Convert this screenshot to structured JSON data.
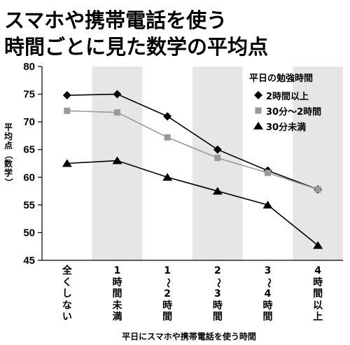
{
  "title_line1": "スマホや携帯電話を使う",
  "title_line2": "時間ごとに見た数学の平均点",
  "chart_data": {
    "type": "line",
    "ylabel": "平均点（数学）",
    "xlabel": "平日にスマホや携帯電話を使う時間",
    "categories": [
      "全くしない",
      "1時間未満",
      "1〜2時間",
      "2〜3時間",
      "3〜4時間",
      "4時間以上"
    ],
    "ylim": [
      45,
      80
    ],
    "yticks": [
      45,
      50,
      55,
      60,
      65,
      70,
      75,
      80
    ],
    "legend_title": "平日の勉強時間",
    "legend_position": "top-right",
    "grid": false,
    "alternating_shaded_columns": true,
    "series": [
      {
        "name": "2時間以上",
        "marker": "diamond",
        "color": "#000000",
        "values": [
          74.8,
          75.0,
          71.0,
          65.0,
          61.2,
          57.8
        ]
      },
      {
        "name": "30分〜2時間",
        "marker": "square",
        "color": "#999999",
        "values": [
          72.0,
          71.7,
          67.2,
          63.5,
          60.8,
          57.8
        ]
      },
      {
        "name": "30分未満",
        "marker": "triangle",
        "color": "#000000",
        "values": [
          62.5,
          63.0,
          60.0,
          57.5,
          55.0,
          47.7
        ]
      }
    ]
  }
}
